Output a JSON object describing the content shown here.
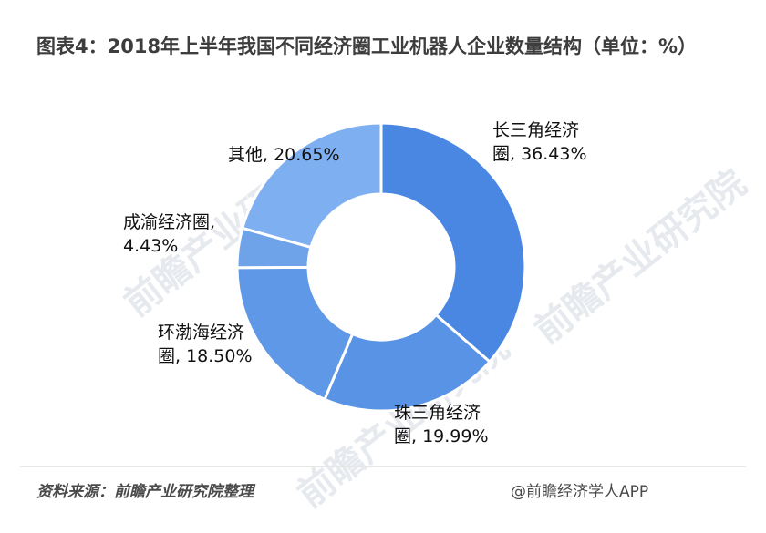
{
  "header": {
    "title": "图表4：2018年上半年我国不同经济圈工业机器人企业数量结构（单位：%）"
  },
  "chart_data": {
    "type": "pie",
    "title": "图表4：2018年上半年我国不同经济圈工业机器人企业数量结构（单位：%）",
    "unit": "%",
    "categories": [
      "长三角经济圈",
      "珠三角经济圈",
      "环渤海经济圈",
      "成渝经济圈",
      "其他"
    ],
    "values": [
      36.43,
      19.99,
      18.5,
      4.43,
      20.65
    ],
    "data_labels": [
      "长三角经济圈, 36.43%",
      "珠三角经济圈, 19.99%",
      "环渤海经济圈, 18.50%",
      "成渝经济圈, 4.43%",
      "其他, 20.65%"
    ],
    "colors": [
      "#4a87e3",
      "#5993e6",
      "#5f98e7",
      "#6ea3ea",
      "#7eaff0"
    ]
  },
  "labels": {
    "yangtze_line1": "长三角经济",
    "yangtze_line2": "圈, 36.43%",
    "pearl_line1": "珠三角经济",
    "pearl_line2": "圈, 19.99%",
    "bohai_line1": "环渤海经济",
    "bohai_line2": "圈, 18.50%",
    "chengyu_line1": "成渝经济圈,",
    "chengyu_line2": "4.43%",
    "other_line1": "其他, 20.65%"
  },
  "watermark": {
    "text": "前瞻产业研究院"
  },
  "footer": {
    "source": "资料来源：前瞻产业研究院整理",
    "credit": "@前瞻经济学人APP"
  }
}
